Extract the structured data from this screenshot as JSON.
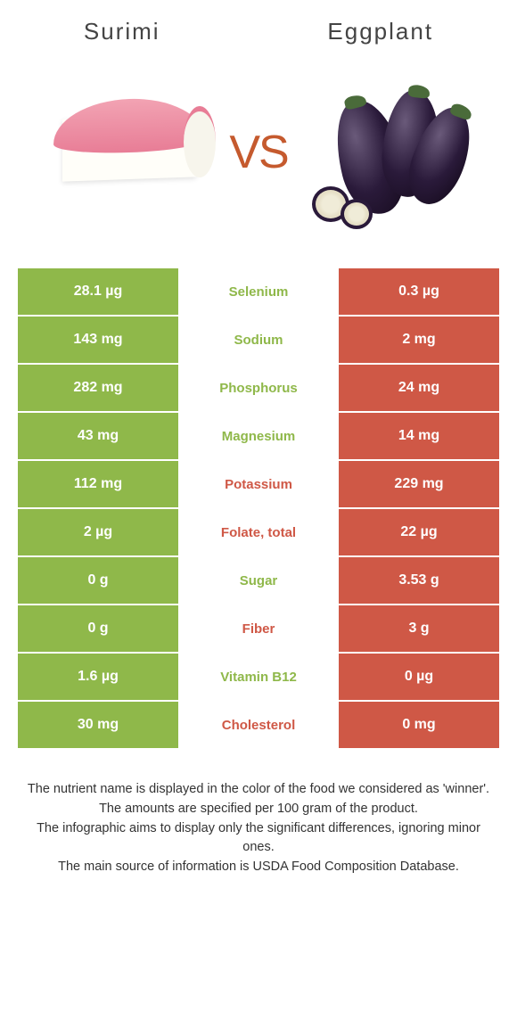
{
  "leftFood": "Surimi",
  "rightFood": "Eggplant",
  "vsLabel": "VS",
  "colors": {
    "green": "#8fb84a",
    "red": "#cf5846",
    "white": "#ffffff"
  },
  "nutrients": [
    {
      "label": "Selenium",
      "left": "28.1 µg",
      "right": "0.3 µg",
      "winner": "left"
    },
    {
      "label": "Sodium",
      "left": "143 mg",
      "right": "2 mg",
      "winner": "left"
    },
    {
      "label": "Phosphorus",
      "left": "282 mg",
      "right": "24 mg",
      "winner": "left"
    },
    {
      "label": "Magnesium",
      "left": "43 mg",
      "right": "14 mg",
      "winner": "left"
    },
    {
      "label": "Potassium",
      "left": "112 mg",
      "right": "229 mg",
      "winner": "right"
    },
    {
      "label": "Folate, total",
      "left": "2 µg",
      "right": "22 µg",
      "winner": "right"
    },
    {
      "label": "Sugar",
      "left": "0 g",
      "right": "3.53 g",
      "winner": "left"
    },
    {
      "label": "Fiber",
      "left": "0 g",
      "right": "3 g",
      "winner": "right"
    },
    {
      "label": "Vitamin B12",
      "left": "1.6 µg",
      "right": "0 µg",
      "winner": "left"
    },
    {
      "label": "Cholesterol",
      "left": "30 mg",
      "right": "0 mg",
      "winner": "right"
    }
  ],
  "footer": [
    "The nutrient name is displayed in the color of the food we considered as 'winner'.",
    "The amounts are specified per 100 gram of the product.",
    "The infographic aims to display only the significant differences, ignoring minor ones.",
    "The main source of information is USDA Food Composition Database."
  ]
}
